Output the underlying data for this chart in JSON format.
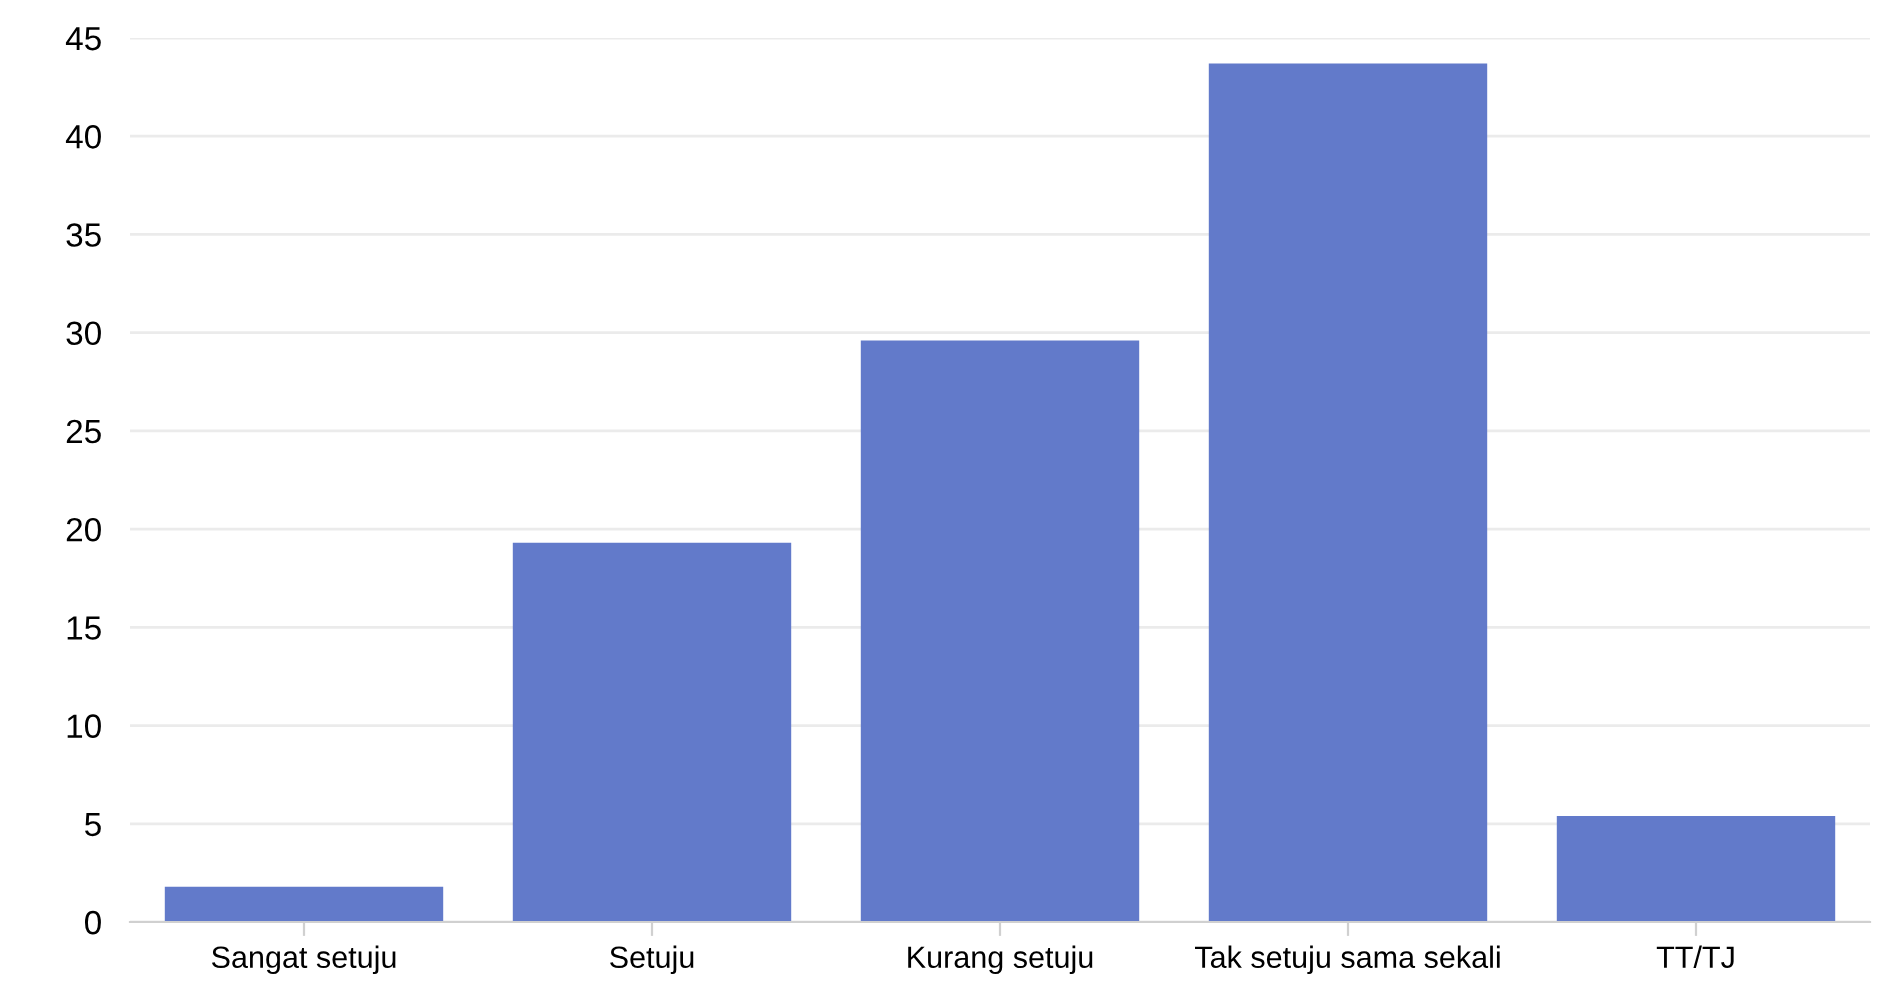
{
  "chart_data": {
    "type": "bar",
    "categories": [
      "Sangat setuju",
      "Setuju",
      "Kurang setuju",
      "Tak setuju sama sekali",
      "TT/TJ"
    ],
    "values": [
      1.8,
      19.3,
      29.6,
      43.7,
      5.4
    ],
    "color": "#627aca",
    "ylim": [
      0,
      45
    ],
    "yticks": [
      0,
      5,
      10,
      15,
      20,
      25,
      30,
      35,
      40,
      45
    ],
    "grid": "y"
  }
}
